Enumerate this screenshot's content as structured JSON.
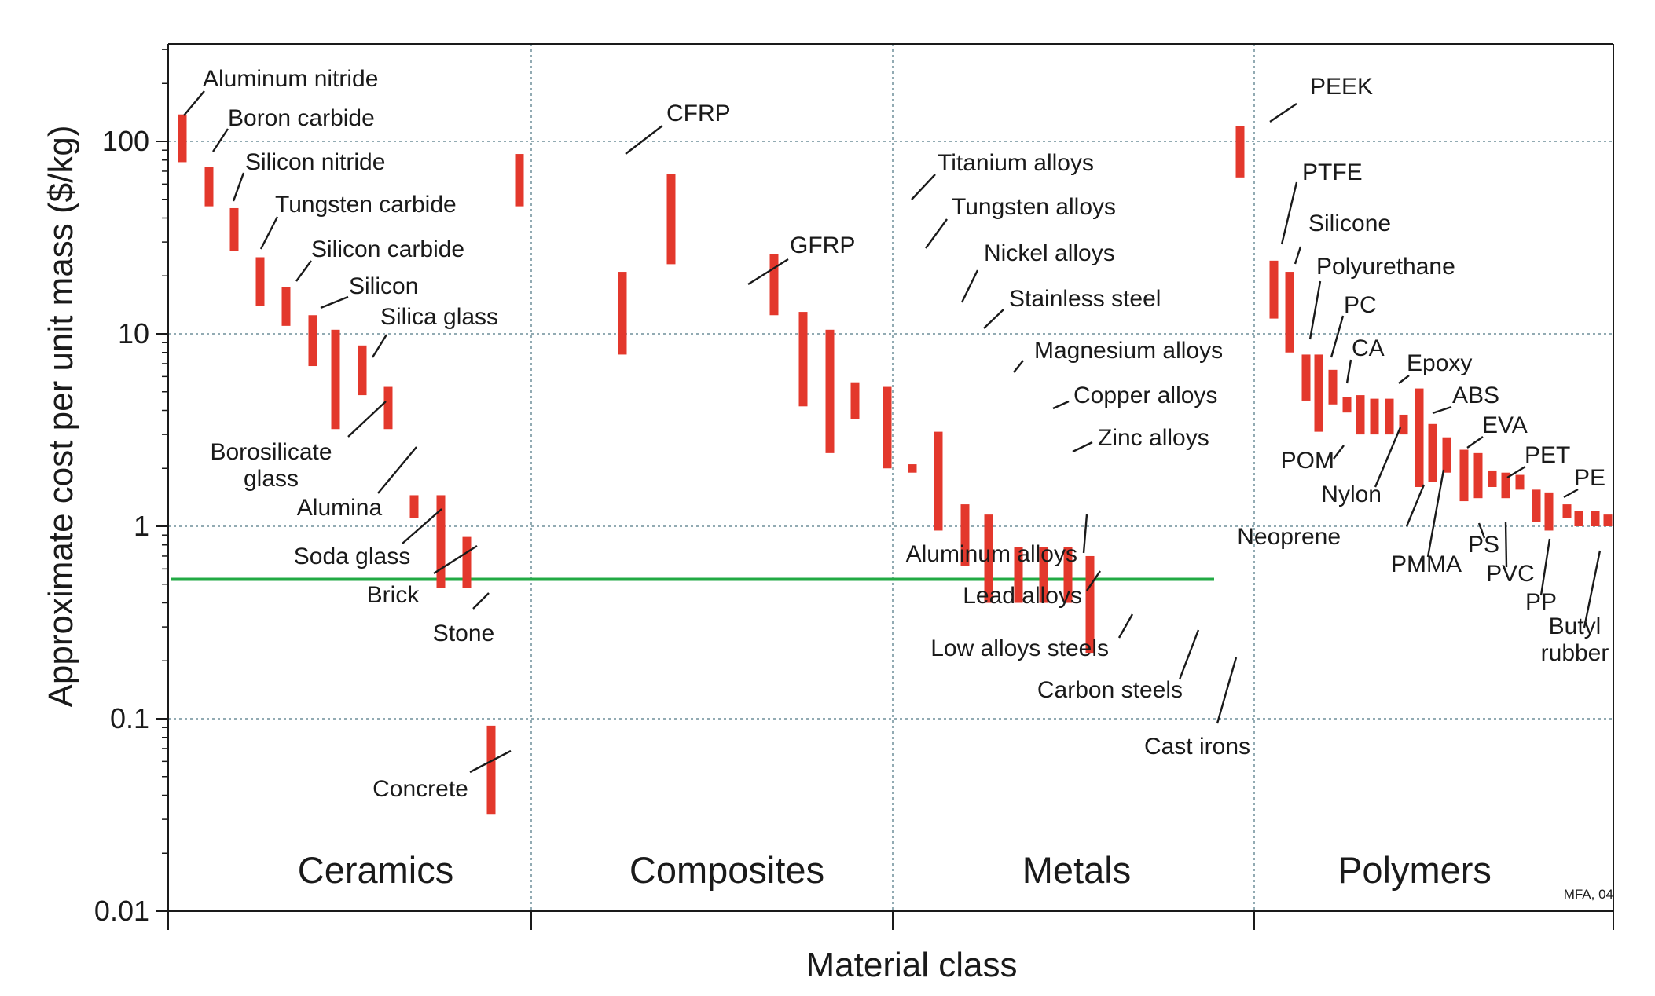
{
  "chart_data": {
    "type": "bar",
    "subtype": "range-bar",
    "xlabel": "Material class",
    "ylabel": "Approximate cost per unit mass ($/kg)",
    "yscale": "log",
    "ylim": [
      0.01,
      300
    ],
    "yticks": [
      {
        "value": 100,
        "label": "100"
      },
      {
        "value": 10,
        "label": "10"
      },
      {
        "value": 1,
        "label": "1"
      },
      {
        "value": 0.1,
        "label": "0.1"
      },
      {
        "value": 0.01,
        "label": "0.01"
      }
    ],
    "grid": true,
    "bar_color": "#e3382c",
    "reference_line": {
      "value": 0.53,
      "color": "#22aa44"
    },
    "note": "MFA, 04",
    "classes": [
      "Ceramics",
      "Composites",
      "Metals",
      "Polymers"
    ],
    "materials": [
      {
        "name": "Aluminum nitride",
        "class": "Ceramics",
        "low": 78,
        "high": 138
      },
      {
        "name": "Boron carbide",
        "class": "Ceramics",
        "low": 46,
        "high": 74
      },
      {
        "name": "Silicon nitride",
        "class": "Ceramics",
        "low": 27,
        "high": 45
      },
      {
        "name": "Tungsten carbide",
        "class": "Ceramics",
        "low": 14,
        "high": 25
      },
      {
        "name": "Silicon carbide",
        "class": "Ceramics",
        "low": 11,
        "high": 17.5
      },
      {
        "name": "Silicon",
        "class": "Ceramics",
        "low": 6.8,
        "high": 12.5
      },
      {
        "name": "Silica glass",
        "class": "Ceramics",
        "low": 3.2,
        "high": 10.5
      },
      {
        "name": "Borosilicate glass",
        "class": "Ceramics",
        "low": 4.8,
        "high": 8.7
      },
      {
        "name": "Alumina",
        "class": "Ceramics",
        "low": 3.2,
        "high": 5.3
      },
      {
        "name": "Soda glass",
        "class": "Ceramics",
        "low": 1.1,
        "high": 1.45
      },
      {
        "name": "Brick",
        "class": "Ceramics",
        "low": 0.48,
        "high": 1.45
      },
      {
        "name": "Stone",
        "class": "Ceramics",
        "low": 0.48,
        "high": 0.88
      },
      {
        "name": "Concrete",
        "class": "Ceramics",
        "low": 0.032,
        "high": 0.092
      },
      {
        "name": "CFRP",
        "class": "Composites",
        "low": 46,
        "high": 86
      },
      {
        "name": "GFRP",
        "class": "Composites",
        "low": 7.8,
        "high": 21
      },
      {
        "name": "Titanium alloys",
        "class": "Metals",
        "low": 23,
        "high": 68
      },
      {
        "name": "Tungsten alloys",
        "class": "Metals",
        "low": 12.5,
        "high": 26
      },
      {
        "name": "Nickel alloys",
        "class": "Metals",
        "low": 4.2,
        "high": 13
      },
      {
        "name": "Stainless steel",
        "class": "Metals",
        "low": 2.4,
        "high": 10.5
      },
      {
        "name": "Magnesium alloys",
        "class": "Metals",
        "low": 3.6,
        "high": 5.6
      },
      {
        "name": "Copper alloys",
        "class": "Metals",
        "low": 2.0,
        "high": 5.3
      },
      {
        "name": "Zinc alloys",
        "class": "Metals",
        "low": 1.9,
        "high": 2.1
      },
      {
        "name": "Aluminum alloys",
        "class": "Metals",
        "low": 0.95,
        "high": 3.1
      },
      {
        "name": "Lead alloys",
        "class": "Metals",
        "low": 0.62,
        "high": 1.3
      },
      {
        "name": "Low alloys steels",
        "class": "Metals",
        "low": 0.4,
        "high": 1.15
      },
      {
        "name": "Carbon steels",
        "class": "Metals",
        "low": 0.4,
        "high": 0.78
      },
      {
        "name": "Carbon steels",
        "class": "Metals",
        "low": 0.4,
        "high": 0.78
      },
      {
        "name": "Carbon steels",
        "class": "Metals",
        "low": 0.4,
        "high": 0.78
      },
      {
        "name": "Cast irons",
        "class": "Metals",
        "low": 0.22,
        "high": 0.7
      },
      {
        "name": "PEEK",
        "class": "Polymers",
        "low": 65,
        "high": 120
      },
      {
        "name": "PTFE",
        "class": "Polymers",
        "low": 12,
        "high": 24
      },
      {
        "name": "Silicone",
        "class": "Polymers",
        "low": 8.0,
        "high": 21
      },
      {
        "name": "Polyurethane",
        "class": "Polymers",
        "low": 4.5,
        "high": 7.8
      },
      {
        "name": "PC",
        "class": "Polymers",
        "low": 3.1,
        "high": 7.8
      },
      {
        "name": "CA",
        "class": "Polymers",
        "low": 4.3,
        "high": 6.5
      },
      {
        "name": "POM",
        "class": "Polymers",
        "low": 3.9,
        "high": 4.7
      },
      {
        "name": "POM",
        "class": "Polymers",
        "low": 3.0,
        "high": 4.8
      },
      {
        "name": "Nylon",
        "class": "Polymers",
        "low": 3.0,
        "high": 4.6
      },
      {
        "name": "Nylon",
        "class": "Polymers",
        "low": 3.0,
        "high": 4.6
      },
      {
        "name": "Epoxy",
        "class": "Polymers",
        "low": 3.0,
        "high": 3.8
      },
      {
        "name": "Neoprene",
        "class": "Polymers",
        "low": 1.6,
        "high": 5.2
      },
      {
        "name": "PMMA",
        "class": "Polymers",
        "low": 1.7,
        "high": 3.4
      },
      {
        "name": "ABS",
        "class": "Polymers",
        "low": 1.9,
        "high": 2.9
      },
      {
        "name": "EVA",
        "class": "Polymers",
        "low": 1.35,
        "high": 2.5
      },
      {
        "name": "PS",
        "class": "Polymers",
        "low": 1.4,
        "high": 2.4
      },
      {
        "name": "PVC",
        "class": "Polymers",
        "low": 1.6,
        "high": 1.95
      },
      {
        "name": "PET",
        "class": "Polymers",
        "low": 1.4,
        "high": 1.9
      },
      {
        "name": "PET",
        "class": "Polymers",
        "low": 1.55,
        "high": 1.85
      },
      {
        "name": "PP",
        "class": "Polymers",
        "low": 1.05,
        "high": 1.55
      },
      {
        "name": "PP",
        "class": "Polymers",
        "low": 0.95,
        "high": 1.5
      },
      {
        "name": "PE",
        "class": "Polymers",
        "low": 1.1,
        "high": 1.3
      },
      {
        "name": "Butyl rubber",
        "class": "Polymers",
        "low": 1.0,
        "high": 1.2
      },
      {
        "name": "Butyl rubber",
        "class": "Polymers",
        "low": 1.0,
        "high": 1.2
      },
      {
        "name": "Butyl rubber",
        "class": "Polymers",
        "low": 1.0,
        "high": 1.15
      }
    ],
    "labels": [
      {
        "lines": [
          "Aluminum nitride"
        ],
        "material": 0
      },
      {
        "lines": [
          "Boron carbide"
        ],
        "material": 1
      },
      {
        "lines": [
          "Silicon nitride"
        ],
        "material": 2
      },
      {
        "lines": [
          "Tungsten carbide"
        ],
        "material": 3
      },
      {
        "lines": [
          "Silicon carbide"
        ],
        "material": 4
      },
      {
        "lines": [
          "Silicon"
        ],
        "material": 5
      },
      {
        "lines": [
          "Silica glass"
        ],
        "material": 7
      },
      {
        "lines": [
          "Borosilicate",
          "glass"
        ],
        "material": 8
      },
      {
        "lines": [
          "Alumina"
        ],
        "material": 9
      },
      {
        "lines": [
          "Soda glass"
        ],
        "material": 10
      },
      {
        "lines": [
          "Brick"
        ],
        "material": 10
      },
      {
        "lines": [
          "Stone"
        ],
        "material": 11
      },
      {
        "lines": [
          "Concrete"
        ],
        "material": 12
      },
      {
        "lines": [
          "CFRP"
        ],
        "material": 13
      },
      {
        "lines": [
          "GFRP"
        ],
        "material": 14
      },
      {
        "lines": [
          "Titanium alloys"
        ],
        "material": 15
      },
      {
        "lines": [
          "Tungsten alloys"
        ],
        "material": 16
      },
      {
        "lines": [
          "Nickel alloys"
        ],
        "material": 17
      },
      {
        "lines": [
          "Stainless steel"
        ],
        "material": 18
      },
      {
        "lines": [
          "Magnesium alloys"
        ],
        "material": 19
      },
      {
        "lines": [
          "Copper alloys"
        ],
        "material": 20
      },
      {
        "lines": [
          "Zinc alloys"
        ],
        "material": 22
      },
      {
        "lines": [
          "Aluminum alloys"
        ],
        "material": 21
      },
      {
        "lines": [
          "Lead alloys"
        ],
        "material": 23
      },
      {
        "lines": [
          "Low alloys steels"
        ],
        "material": 24
      },
      {
        "lines": [
          "Carbon steels"
        ],
        "material": 26
      },
      {
        "lines": [
          "Cast irons"
        ],
        "material": 28
      },
      {
        "lines": [
          "PEEK"
        ],
        "material": 29
      },
      {
        "lines": [
          "PTFE"
        ],
        "material": 30
      },
      {
        "lines": [
          "Silicone"
        ],
        "material": 31
      },
      {
        "lines": [
          "Polyurethane"
        ],
        "material": 32
      },
      {
        "lines": [
          "PC"
        ],
        "material": 34
      },
      {
        "lines": [
          "CA"
        ],
        "material": 35
      },
      {
        "lines": [
          "POM"
        ],
        "material": 34
      },
      {
        "lines": [
          "Nylon"
        ],
        "material": 38
      },
      {
        "lines": [
          "Epoxy"
        ],
        "material": 39
      },
      {
        "lines": [
          "Neoprene"
        ],
        "material": 40
      },
      {
        "lines": [
          "PMMA"
        ],
        "material": 41
      },
      {
        "lines": [
          "ABS"
        ],
        "material": 41
      },
      {
        "lines": [
          "EVA"
        ],
        "material": 43
      },
      {
        "lines": [
          "PS"
        ],
        "material": 44
      },
      {
        "lines": [
          "PVC"
        ],
        "material": 45
      },
      {
        "lines": [
          "PET"
        ],
        "material": 45
      },
      {
        "lines": [
          "PP"
        ],
        "material": 49
      },
      {
        "lines": [
          "PE"
        ],
        "material": 50
      },
      {
        "lines": [
          "Butyl",
          "rubber"
        ],
        "material": 52
      }
    ]
  }
}
